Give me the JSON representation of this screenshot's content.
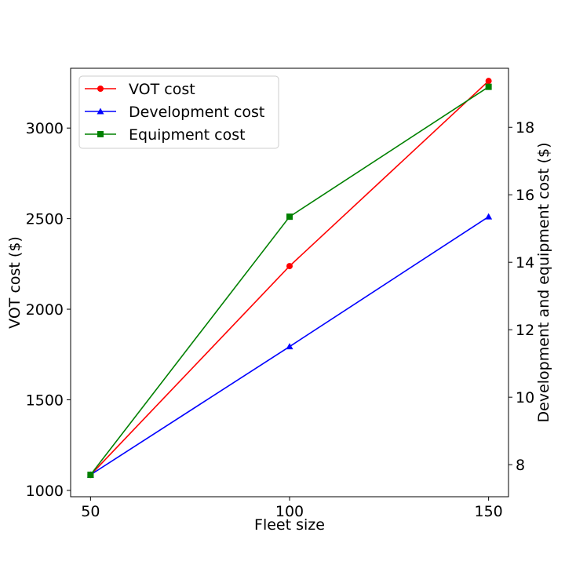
{
  "chart_data": {
    "type": "line",
    "title": "",
    "xlabel": "Fleet size",
    "ylabel_left": "VOT cost ($)",
    "ylabel_right": "Development and equipment cost ($)",
    "x": [
      50,
      100,
      150
    ],
    "x_ticks": [
      50,
      100,
      150
    ],
    "xlim": [
      45,
      155
    ],
    "ylim_left": [
      965,
      3330
    ],
    "ylim_right": [
      7.05,
      19.75
    ],
    "y_ticks_left": [
      1000,
      1500,
      2000,
      2500,
      3000
    ],
    "y_ticks_right": [
      8,
      10,
      12,
      14,
      16,
      18
    ],
    "grid": false,
    "legend_position": "upper-left",
    "series": [
      {
        "name": "VOT cost",
        "axis": "left",
        "marker": "circle",
        "color": "#ff0000",
        "values": [
          1085,
          2238,
          3260
        ]
      },
      {
        "name": "Development cost",
        "axis": "right",
        "marker": "triangle",
        "color": "#0000ff",
        "values": [
          7.7,
          11.5,
          15.35
        ]
      },
      {
        "name": "Equipment cost",
        "axis": "right",
        "marker": "square",
        "color": "#008000",
        "values": [
          7.7,
          15.35,
          19.2
        ]
      }
    ]
  }
}
